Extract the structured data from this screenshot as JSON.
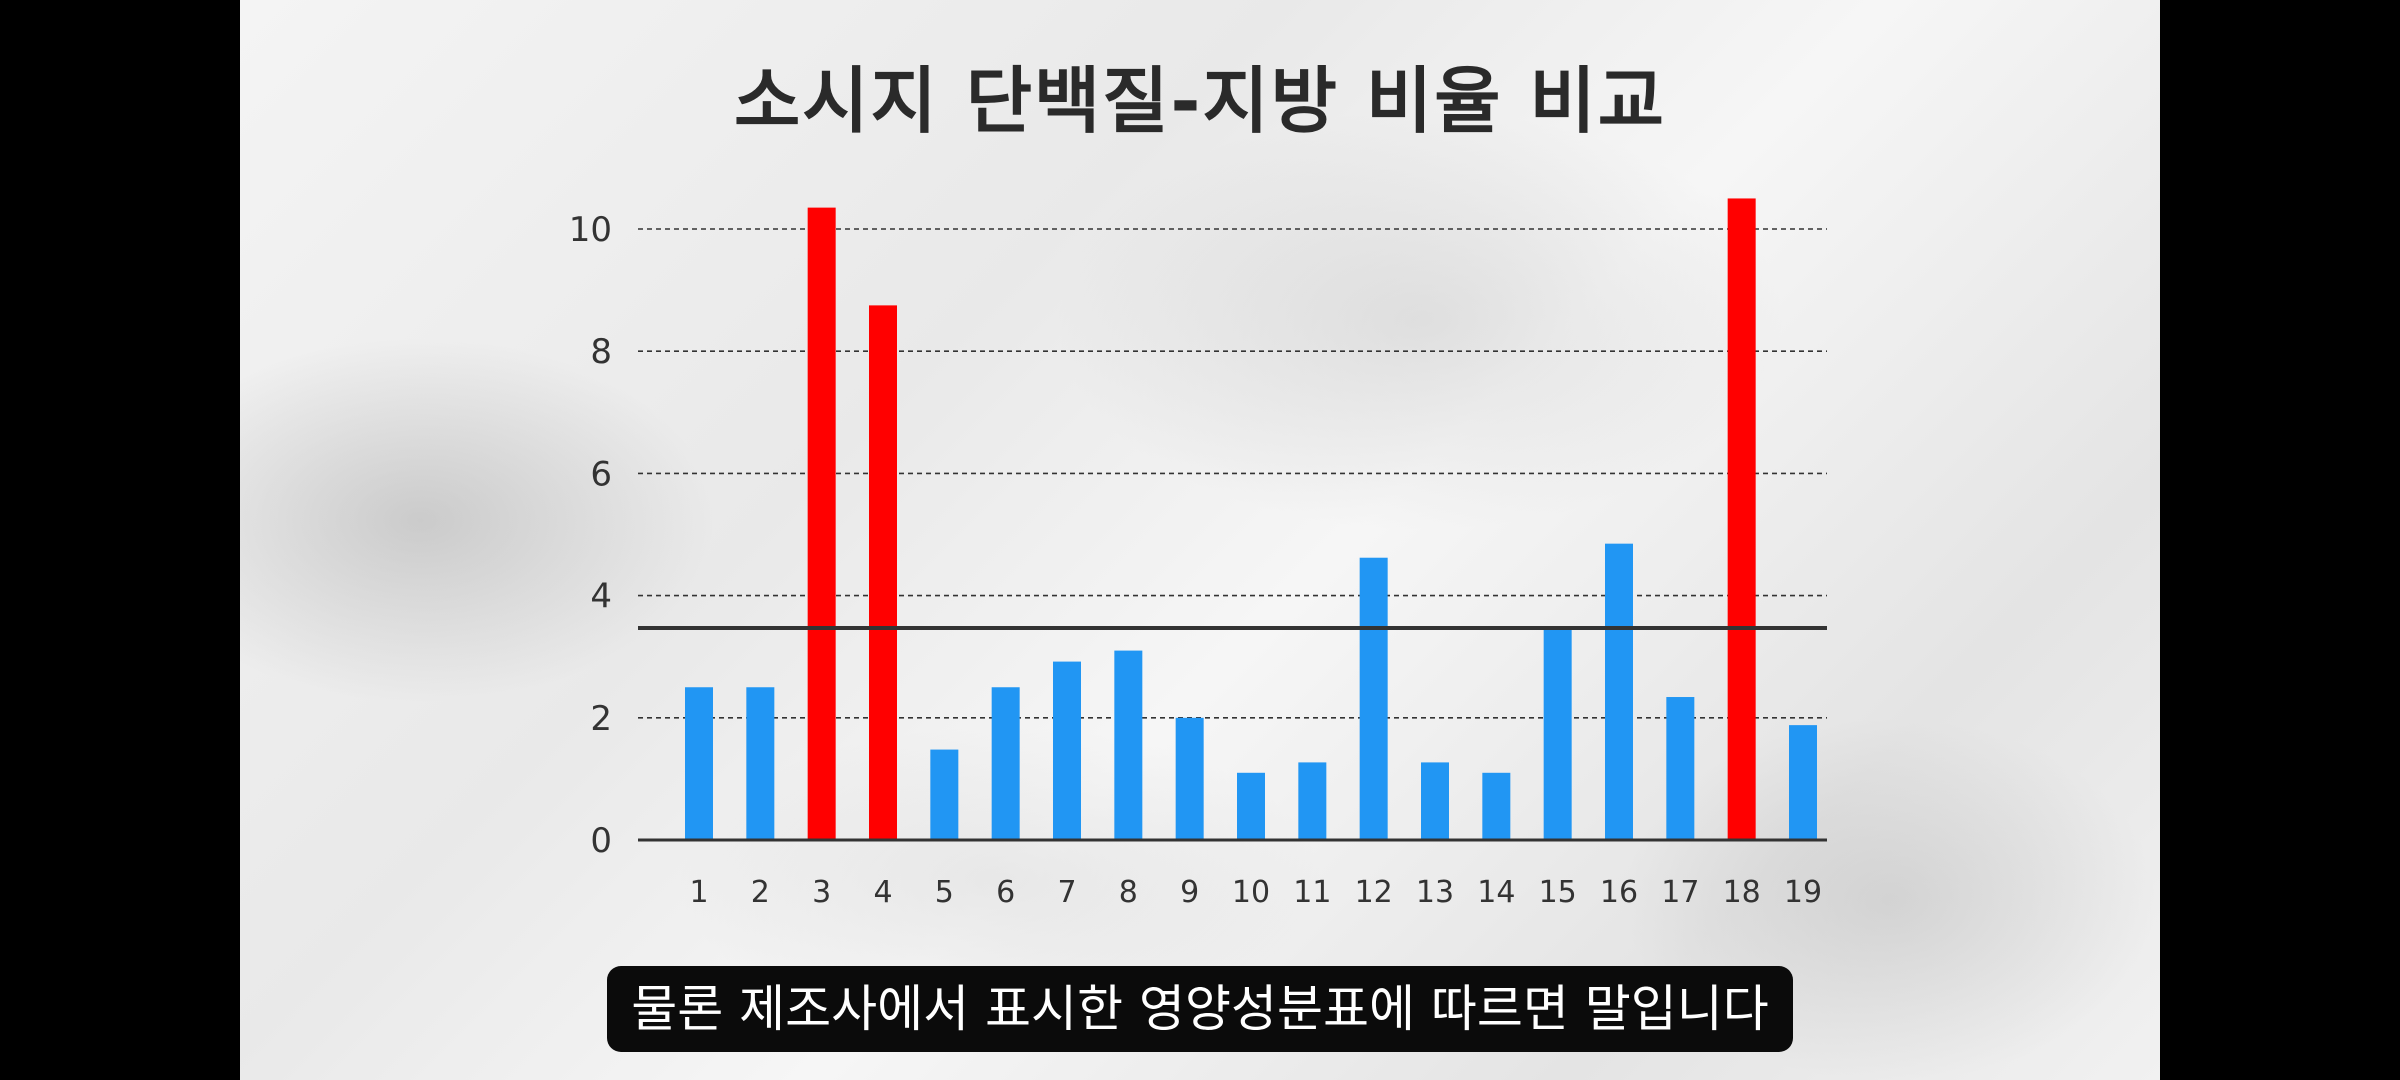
{
  "video": {
    "caption": "물론 제조사에서 표시한 영양성분표에 따르면 말입니다"
  },
  "colors": {
    "normal_bar": "#2196f3",
    "highlight_bar": "#ff0000",
    "reference_line": "#333333",
    "grid": "#333333"
  },
  "chart_data": {
    "type": "bar",
    "title": "소시지 단백질-지방 비율 비교",
    "xlabel": "",
    "ylabel": "",
    "categories": [
      "1",
      "2",
      "3",
      "4",
      "5",
      "6",
      "7",
      "8",
      "9",
      "10",
      "11",
      "12",
      "13",
      "14",
      "15",
      "16",
      "17",
      "18",
      "19"
    ],
    "values": [
      2.5,
      2.5,
      10.35,
      8.75,
      1.48,
      2.5,
      2.92,
      3.1,
      2.0,
      1.1,
      1.27,
      4.62,
      1.27,
      1.1,
      3.5,
      4.85,
      2.34,
      10.5,
      1.88
    ],
    "highlighted": [
      3,
      4,
      18
    ],
    "ylim": [
      0,
      10
    ],
    "yticks": [
      0,
      2,
      4,
      6,
      8,
      10
    ],
    "reference_line": 3.47,
    "grid": "dashed horizontal",
    "legend": "none"
  }
}
